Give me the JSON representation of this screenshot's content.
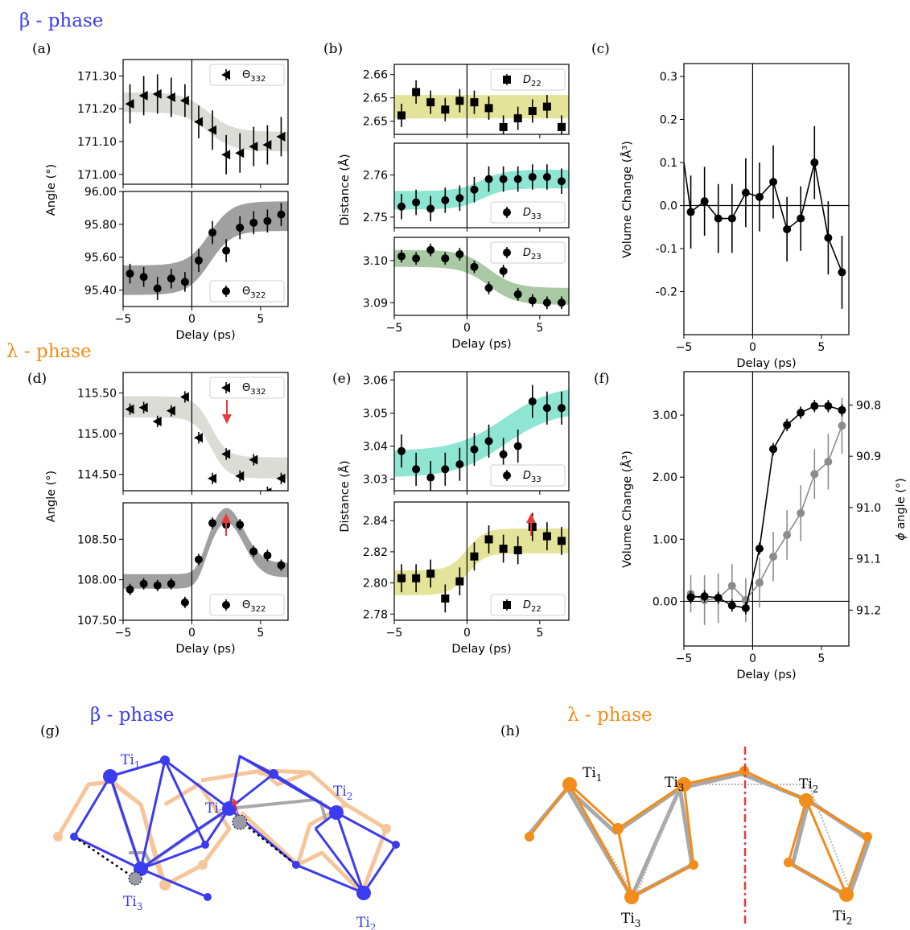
{
  "phase_labels": {
    "beta_top": "β - phase",
    "lambda_mid": "λ - phase",
    "beta_bottom": "β - phase",
    "lambda_bottom": "λ - phase"
  },
  "panel_labels": [
    "(a)",
    "(b)",
    "(c)",
    "(d)",
    "(e)",
    "(f)",
    "(g)",
    "(h)"
  ],
  "atom_labels": {
    "g": [
      "Ti1",
      "Ti2",
      "Ti3",
      "Ti3",
      "Ti2"
    ],
    "h": [
      "Ti1",
      "Ti3",
      "Ti2",
      "Ti3",
      "Ti2"
    ]
  },
  "colors": {
    "beta": "#3b3bef",
    "lambda": "#f28c1a",
    "band_light_gray": "#dcdcd6",
    "band_dark_gray": "#a0a0a0",
    "band_yellow": "#e3e39a",
    "band_teal": "#8ee6d2",
    "band_green": "#a9c9a4",
    "volume_gray": "#8c8c8c",
    "arrow_red": "#e83a3a"
  },
  "chart_data": [
    {
      "id": "a_top",
      "type": "scatter",
      "panel": "(a)",
      "ylabel": "Angle (°)",
      "xlim": [
        -5,
        7
      ],
      "ylim": [
        170.97,
        171.35
      ],
      "yticks": [
        "171.00",
        "171.10",
        "171.20",
        "171.30"
      ],
      "legend": "Θ332",
      "legend_pos": "top-right",
      "marker": "triangle-left",
      "x": [
        -4.5,
        -3.5,
        -2.5,
        -1.5,
        -0.5,
        0.5,
        1.5,
        2.5,
        3.5,
        4.5,
        5.5,
        6.5
      ],
      "y": [
        171.215,
        171.24,
        171.245,
        171.235,
        171.225,
        171.16,
        171.135,
        171.06,
        171.065,
        171.085,
        171.09,
        171.115
      ],
      "err": [
        0.06,
        0.06,
        0.06,
        0.06,
        0.05,
        0.05,
        0.06,
        0.06,
        0.06,
        0.06,
        0.06,
        0.06
      ],
      "band": {
        "color": "#dcdcd6",
        "before": 171.22,
        "after": 171.1,
        "center": 1.2,
        "width": 0.9,
        "half": 0.03
      }
    },
    {
      "id": "a_bot",
      "type": "scatter",
      "panel": "(a)",
      "xlabel": "Delay (ps)",
      "xlim": [
        -5,
        7
      ],
      "ylim": [
        95.3,
        96.0
      ],
      "yticks": [
        "95.40",
        "95.60",
        "95.80",
        "96.00"
      ],
      "xticks": [
        "-5",
        "0",
        "5"
      ],
      "legend": "Θ322",
      "legend_pos": "bottom-right",
      "marker": "circle",
      "x": [
        -4.5,
        -3.5,
        -2.5,
        -1.5,
        -0.5,
        0.5,
        1.5,
        2.5,
        3.5,
        4.5,
        5.5,
        6.5
      ],
      "y": [
        95.5,
        95.48,
        95.41,
        95.47,
        95.45,
        95.58,
        95.75,
        95.64,
        95.78,
        95.81,
        95.82,
        95.86
      ],
      "err": [
        0.06,
        0.06,
        0.07,
        0.06,
        0.06,
        0.07,
        0.07,
        0.07,
        0.07,
        0.07,
        0.07,
        0.07
      ],
      "band": {
        "color": "#a0a0a0",
        "before": 95.46,
        "after": 95.85,
        "center": 1.3,
        "width": 0.8,
        "half": 0.09
      }
    },
    {
      "id": "b_top",
      "type": "scatter",
      "panel": "(b)",
      "xlim": [
        -5,
        7
      ],
      "ylim": [
        2.64,
        2.664
      ],
      "yticks": [
        "2.65",
        "2.65",
        "2.66"
      ],
      "ytick_values": [
        2.6445,
        2.6525,
        2.6605
      ],
      "legend": "D22",
      "legend_pos": "top-right",
      "marker": "square",
      "x": [
        -4.5,
        -3.5,
        -2.5,
        -1.5,
        -0.5,
        0.5,
        1.5,
        2.5,
        3.5,
        4.5,
        5.5,
        6.5
      ],
      "y": [
        2.6465,
        2.6545,
        2.651,
        2.6485,
        2.6515,
        2.651,
        2.649,
        2.6425,
        2.6455,
        2.648,
        2.6495,
        2.6425
      ],
      "err": [
        0.004,
        0.004,
        0.004,
        0.004,
        0.004,
        0.004,
        0.004,
        0.004,
        0.004,
        0.004,
        0.004,
        0.004
      ],
      "band": {
        "color": "#e3e39a",
        "before": 2.6495,
        "after": 2.6495,
        "center": 1.0,
        "width": 1.0,
        "half": 0.004
      }
    },
    {
      "id": "b_mid",
      "type": "scatter",
      "panel": "(b)",
      "ylabel": "Distance (Å)",
      "xlim": [
        -5,
        7
      ],
      "ylim": [
        2.7475,
        2.7675
      ],
      "yticks": [
        "2.75",
        "2.76"
      ],
      "legend": "D33",
      "legend_pos": "bottom-right",
      "marker": "circle",
      "x": [
        -4.5,
        -3.5,
        -2.5,
        -1.5,
        -0.5,
        0.5,
        1.5,
        2.5,
        3.5,
        4.5,
        5.5,
        6.5
      ],
      "y": [
        2.7525,
        2.7535,
        2.752,
        2.754,
        2.7545,
        2.7565,
        2.759,
        2.759,
        2.759,
        2.7595,
        2.7595,
        2.7585
      ],
      "err": [
        0.003,
        0.003,
        0.003,
        0.003,
        0.003,
        0.003,
        0.003,
        0.003,
        0.003,
        0.003,
        0.003,
        0.003
      ],
      "band": {
        "color": "#8ee6d2",
        "before": 2.754,
        "after": 2.759,
        "center": 1.0,
        "width": 0.8,
        "half": 0.0022
      }
    },
    {
      "id": "b_bot",
      "type": "scatter",
      "panel": "(b)",
      "xlabel": "Delay (ps)",
      "xlim": [
        -5,
        7
      ],
      "ylim": [
        3.087,
        3.1055
      ],
      "yticks": [
        "3.09",
        "3.10"
      ],
      "xticks": [
        "-5",
        "0",
        "5"
      ],
      "legend": "D23",
      "legend_pos": "top-right",
      "marker": "circle",
      "x": [
        -4.5,
        -3.5,
        -2.5,
        -1.5,
        -0.5,
        0.5,
        1.5,
        2.5,
        3.5,
        4.5,
        5.5,
        6.5
      ],
      "y": [
        3.101,
        3.1005,
        3.1025,
        3.1005,
        3.1015,
        3.0985,
        3.0935,
        3.0975,
        3.092,
        3.0905,
        3.09,
        3.09
      ],
      "err": [
        0.0015,
        0.0015,
        0.0015,
        0.0015,
        0.0015,
        0.0015,
        0.0015,
        0.0015,
        0.0015,
        0.0015,
        0.0015,
        0.0015
      ],
      "band": {
        "color": "#a9c9a4",
        "before": 3.1005,
        "after": 3.0915,
        "center": 1.5,
        "width": 0.9,
        "half": 0.002
      }
    },
    {
      "id": "c",
      "type": "line",
      "panel": "(c)",
      "ylabel": "Volume Change (Å³)",
      "xlabel": "Delay (ps)",
      "xlim": [
        -5,
        7
      ],
      "ylim": [
        -0.3,
        0.33
      ],
      "yticks": [
        "-0.2",
        "-0.1",
        "0.0",
        "0.1",
        "0.2",
        "0.3"
      ],
      "xticks": [
        "-5",
        "0",
        "5"
      ],
      "x": [
        -5,
        -4.5,
        -3.5,
        -2.5,
        -1.5,
        -0.5,
        0.5,
        1.5,
        2.5,
        3.5,
        4.5,
        5.5,
        6.5
      ],
      "y": [
        0.1,
        -0.015,
        0.01,
        -0.03,
        -0.03,
        0.03,
        0.02,
        0.055,
        -0.055,
        -0.03,
        0.1,
        -0.075,
        -0.155
      ],
      "err": [
        0,
        0.085,
        0.08,
        0.08,
        0.08,
        0.08,
        0.08,
        0.085,
        0.075,
        0.075,
        0.085,
        0.085,
        0.085
      ]
    },
    {
      "id": "d_top",
      "type": "scatter",
      "panel": "(d)",
      "ylabel": "Angle (°)",
      "xlim": [
        -5,
        7
      ],
      "ylim": [
        114.3,
        115.75
      ],
      "yticks": [
        "114.50",
        "115.00",
        "115.50"
      ],
      "legend": "Θ332",
      "legend_pos": "top-right",
      "marker": "triangle-left",
      "x": [
        -4.5,
        -3.5,
        -2.5,
        -1.5,
        -0.5,
        0.5,
        1.5,
        2.5,
        3.5,
        4.5,
        5.5,
        6.5
      ],
      "y": [
        115.3,
        115.32,
        115.15,
        115.28,
        115.45,
        114.95,
        114.45,
        114.75,
        114.48,
        114.68,
        114.28,
        114.45
      ],
      "err": [
        0.07,
        0.07,
        0.07,
        0.07,
        0.07,
        0.07,
        0.07,
        0.07,
        0.07,
        0.07,
        0.07,
        0.07
      ],
      "band": {
        "color": "#dcdcd6",
        "before": 115.33,
        "after": 114.58,
        "center": 1.4,
        "width": 0.6,
        "half": 0.13
      }
    },
    {
      "id": "d_bot",
      "type": "scatter",
      "panel": "(d)",
      "xlabel": "Delay (ps)",
      "xlim": [
        -5,
        7
      ],
      "ylim": [
        107.5,
        108.95
      ],
      "yticks": [
        "107.50",
        "108.00",
        "108.50"
      ],
      "xticks": [
        "-5",
        "0",
        "5"
      ],
      "legend": "Θ322",
      "legend_pos": "bottom-right",
      "marker": "circle",
      "x": [
        -4.5,
        -3.5,
        -2.5,
        -1.5,
        -0.5,
        0.5,
        1.5,
        2.5,
        3.5,
        4.5,
        5.5,
        6.5
      ],
      "y": [
        107.88,
        107.95,
        107.93,
        107.95,
        107.72,
        108.25,
        108.7,
        108.68,
        108.68,
        108.35,
        108.3,
        108.18
      ],
      "err": [
        0.07,
        0.07,
        0.07,
        0.07,
        0.07,
        0.07,
        0.07,
        0.07,
        0.07,
        0.07,
        0.07,
        0.07
      ],
      "band": {
        "color": "#a0a0a0",
        "before": 107.98,
        "after": 108.12,
        "center": 0.6,
        "width": 0.35,
        "peak": 0.68,
        "peak_center": 2.5,
        "peak_width": 1.8,
        "half": 0.09
      }
    },
    {
      "id": "e_top",
      "type": "scatter",
      "panel": "(e)",
      "xlim": [
        -5,
        7
      ],
      "ylim": [
        3.0265,
        3.0625
      ],
      "yticks": [
        "3.03",
        "3.04",
        "3.05",
        "3.06"
      ],
      "legend": "D33",
      "legend_pos": "bottom-right",
      "marker": "circle",
      "x": [
        -4.5,
        -3.5,
        -2.5,
        -1.5,
        -0.5,
        0.5,
        1.5,
        2.5,
        3.5,
        4.5,
        5.5,
        6.5
      ],
      "y": [
        3.0385,
        3.033,
        3.0305,
        3.033,
        3.0345,
        3.039,
        3.0415,
        3.0375,
        3.04,
        3.0535,
        3.0515,
        3.0515
      ],
      "err": [
        0.005,
        0.005,
        0.005,
        0.005,
        0.005,
        0.005,
        0.005,
        0.005,
        0.005,
        0.005,
        0.005,
        0.005
      ],
      "band": {
        "color": "#8ee6d2",
        "before": 3.0345,
        "after": 3.0545,
        "center": 2.6,
        "width": 1.7,
        "half": 0.004
      }
    },
    {
      "id": "e_bot",
      "type": "scatter",
      "panel": "(e)",
      "ylabel": "Distance (Å)",
      "xlabel": "Delay (ps)",
      "xlim": [
        -5,
        7
      ],
      "ylim": [
        2.776,
        2.852
      ],
      "yticks": [
        "2.78",
        "2.80",
        "2.82",
        "2.84"
      ],
      "xticks": [
        "-5",
        "0",
        "5"
      ],
      "legend": "D22",
      "legend_pos": "bottom-right",
      "marker": "square",
      "x": [
        -4.5,
        -3.5,
        -2.5,
        -1.5,
        -0.5,
        0.5,
        1.5,
        2.5,
        3.5,
        4.5,
        5.5,
        6.5
      ],
      "y": [
        2.803,
        2.803,
        2.806,
        2.79,
        2.801,
        2.817,
        2.828,
        2.822,
        2.821,
        2.836,
        2.83,
        2.827
      ],
      "err": [
        0.009,
        0.009,
        0.009,
        0.009,
        0.009,
        0.009,
        0.009,
        0.009,
        0.009,
        0.009,
        0.009,
        0.009
      ],
      "band": {
        "color": "#e3e39a",
        "before": 2.8,
        "after": 2.827,
        "center": 0.0,
        "width": 0.6,
        "half": 0.008
      }
    },
    {
      "id": "f",
      "type": "line",
      "panel": "(f)",
      "ylabel": "Volume Change (Å³)",
      "ylabel_right": "ϕ angle (°)",
      "xlabel": "Delay (ps)",
      "xlim": [
        -5,
        7
      ],
      "ylim": [
        -0.72,
        3.7
      ],
      "yticks": [
        "0.00",
        "1.00",
        "2.00",
        "3.00"
      ],
      "xticks": [
        "-5",
        "0",
        "5"
      ],
      "yticks_right": [
        "90.8",
        "90.9",
        "91.0",
        "91.1",
        "91.2"
      ],
      "right_ylim": [
        90.735,
        91.27
      ],
      "series": [
        {
          "axis": "left",
          "color": "#8c8c8c",
          "x": [
            -4.5,
            -3.5,
            -2.5,
            -1.5,
            -0.5,
            0.5,
            1.5,
            2.5,
            3.5,
            4.5,
            5.5,
            6.5
          ],
          "y": [
            0.12,
            0.02,
            0.05,
            0.25,
            0.02,
            0.3,
            0.72,
            1.07,
            1.42,
            2.05,
            2.25,
            2.83
          ],
          "err": [
            0.3,
            0.4,
            0.4,
            0.35,
            0.35,
            0.4,
            0.4,
            0.4,
            0.45,
            0.4,
            0.45,
            0.45
          ]
        },
        {
          "axis": "right",
          "color": "#000000",
          "x": [
            -4.5,
            -3.5,
            -2.5,
            -1.5,
            -0.5,
            0.5,
            1.5,
            2.5,
            3.5,
            4.5,
            5.5,
            6.5
          ],
          "y": [
            91.175,
            91.173,
            91.176,
            91.191,
            91.196,
            91.08,
            90.886,
            90.839,
            90.815,
            90.802,
            90.802,
            90.81
          ],
          "err": [
            0.012,
            0.012,
            0.012,
            0.012,
            0.012,
            0.012,
            0.012,
            0.012,
            0.012,
            0.012,
            0.012,
            0.012
          ]
        }
      ]
    }
  ]
}
